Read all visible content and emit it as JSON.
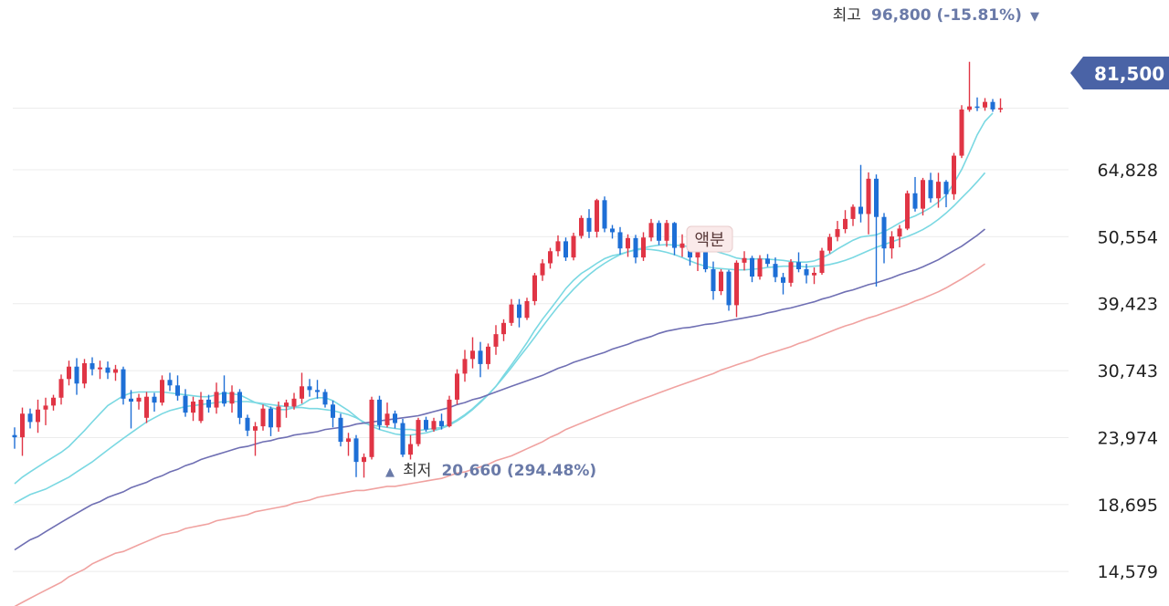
{
  "chart_data": {
    "type": "candlestick",
    "scale": "log",
    "ylim": [
      13000,
      110000
    ],
    "y_ticks": [
      "14,579",
      "18,695",
      "23,974",
      "30,743",
      "39,423",
      "50,554",
      "64,828"
    ],
    "y_tick_values": [
      14579,
      18695,
      23974,
      30743,
      39423,
      50554,
      64828
    ],
    "current_price": {
      "label": "81,500",
      "value": 81500
    },
    "high_annotation": {
      "label": "최고",
      "value_text": "96,800 (-15.81%)",
      "marker": "▼",
      "value": 96800,
      "index": 124
    },
    "low_annotation": {
      "marker": "▲",
      "label": "최저",
      "value_text": "20,660 (294.48%)",
      "value": 20660,
      "index": 45
    },
    "event_label": {
      "text": "액분",
      "index": 80
    },
    "candles": [
      [
        24200,
        24900,
        23000,
        24000
      ],
      [
        24000,
        26800,
        22400,
        26200
      ],
      [
        26200,
        26700,
        24800,
        25400
      ],
      [
        25400,
        27600,
        24400,
        26600
      ],
      [
        26600,
        27800,
        25100,
        27000
      ],
      [
        27000,
        28100,
        26500,
        27800
      ],
      [
        27800,
        30300,
        27100,
        29800
      ],
      [
        29800,
        31900,
        29100,
        31200
      ],
      [
        31200,
        32200,
        28100,
        29300
      ],
      [
        29300,
        32100,
        28800,
        31600
      ],
      [
        31600,
        32300,
        30200,
        30900
      ],
      [
        30900,
        31900,
        29800,
        31100
      ],
      [
        31100,
        31800,
        29800,
        30500
      ],
      [
        30500,
        31400,
        29600,
        30900
      ],
      [
        30900,
        31200,
        27100,
        27700
      ],
      [
        27700,
        28600,
        24800,
        27400
      ],
      [
        27400,
        28200,
        26600,
        27800
      ],
      [
        25800,
        28400,
        25300,
        27900
      ],
      [
        27900,
        28300,
        26400,
        27300
      ],
      [
        27300,
        30200,
        27000,
        29700
      ],
      [
        29700,
        30500,
        28500,
        29100
      ],
      [
        29100,
        30200,
        27500,
        28000
      ],
      [
        28000,
        28700,
        25900,
        26300
      ],
      [
        26300,
        27900,
        25500,
        27400
      ],
      [
        25500,
        28400,
        25300,
        27600
      ],
      [
        27600,
        28100,
        26300,
        26800
      ],
      [
        26800,
        29400,
        26200,
        28400
      ],
      [
        28400,
        30200,
        26900,
        27200
      ],
      [
        27200,
        29100,
        26300,
        28400
      ],
      [
        28400,
        28700,
        25200,
        25800
      ],
      [
        25800,
        26100,
        24100,
        24600
      ],
      [
        24600,
        25400,
        22400,
        25000
      ],
      [
        25000,
        27100,
        24600,
        26700
      ],
      [
        26700,
        26900,
        24100,
        24900
      ],
      [
        24900,
        27400,
        24500,
        26900
      ],
      [
        26900,
        27600,
        25800,
        27300
      ],
      [
        26900,
        28300,
        26600,
        27700
      ],
      [
        27700,
        30500,
        27200,
        29000
      ],
      [
        29000,
        29800,
        27900,
        28600
      ],
      [
        28600,
        29700,
        27700,
        28400
      ],
      [
        28400,
        28700,
        26800,
        27100
      ],
      [
        27100,
        27500,
        24900,
        25800
      ],
      [
        25800,
        26200,
        23200,
        23600
      ],
      [
        23600,
        24400,
        22400,
        23900
      ],
      [
        23900,
        24200,
        20700,
        21900
      ],
      [
        21900,
        22600,
        20660,
        22300
      ],
      [
        22300,
        27900,
        22100,
        27600
      ],
      [
        27600,
        28000,
        24700,
        25100
      ],
      [
        25100,
        27300,
        24900,
        26200
      ],
      [
        26200,
        26500,
        24800,
        25300
      ],
      [
        25300,
        25700,
        22300,
        22500
      ],
      [
        22500,
        24200,
        22100,
        23400
      ],
      [
        23400,
        25800,
        23200,
        25600
      ],
      [
        25600,
        25900,
        24500,
        24700
      ],
      [
        24700,
        25800,
        24500,
        25500
      ],
      [
        25500,
        26200,
        24700,
        25000
      ],
      [
        25000,
        28000,
        24900,
        27600
      ],
      [
        27600,
        30900,
        27100,
        30400
      ],
      [
        30400,
        33200,
        29500,
        32100
      ],
      [
        32100,
        34800,
        31000,
        33100
      ],
      [
        33100,
        34200,
        30000,
        31500
      ],
      [
        31500,
        34000,
        30900,
        33600
      ],
      [
        33600,
        36400,
        32600,
        35200
      ],
      [
        35200,
        37200,
        34300,
        36700
      ],
      [
        36700,
        40100,
        36300,
        39300
      ],
      [
        39300,
        40100,
        36100,
        37400
      ],
      [
        37400,
        40300,
        37100,
        39800
      ],
      [
        39800,
        44200,
        39200,
        43800
      ],
      [
        43800,
        46500,
        42900,
        45800
      ],
      [
        45800,
        48500,
        44900,
        47900
      ],
      [
        47900,
        50800,
        47000,
        49700
      ],
      [
        49700,
        50400,
        46200,
        46800
      ],
      [
        46800,
        51300,
        46300,
        50700
      ],
      [
        50700,
        54700,
        50200,
        54200
      ],
      [
        54200,
        56000,
        50300,
        51500
      ],
      [
        51500,
        58200,
        50400,
        57900
      ],
      [
        57900,
        58700,
        51400,
        52100
      ],
      [
        52100,
        52800,
        50200,
        51400
      ],
      [
        51400,
        52400,
        47300,
        48400
      ],
      [
        48400,
        51000,
        46900,
        50300
      ],
      [
        50300,
        50900,
        45800,
        46800
      ],
      [
        46800,
        51400,
        46200,
        50400
      ],
      [
        50400,
        54000,
        49700,
        53200
      ],
      [
        53200,
        53700,
        49000,
        49800
      ],
      [
        49800,
        53800,
        48700,
        53200
      ],
      [
        53200,
        53400,
        47200,
        48500
      ],
      [
        48500,
        51000,
        46900,
        49300
      ],
      [
        49300,
        49800,
        45400,
        46800
      ],
      [
        46800,
        48800,
        44500,
        47900
      ],
      [
        47900,
        48300,
        44300,
        44800
      ],
      [
        44800,
        46100,
        40000,
        41300
      ],
      [
        41300,
        44800,
        40700,
        44400
      ],
      [
        44400,
        44700,
        38400,
        39200
      ],
      [
        39200,
        46300,
        37500,
        45900
      ],
      [
        45900,
        47900,
        44600,
        46700
      ],
      [
        46700,
        47100,
        42700,
        43600
      ],
      [
        43600,
        47200,
        43100,
        46600
      ],
      [
        46600,
        47400,
        45200,
        45700
      ],
      [
        45700,
        46800,
        42700,
        43500
      ],
      [
        43500,
        44200,
        40800,
        42600
      ],
      [
        42600,
        46500,
        42000,
        46000
      ],
      [
        46000,
        47700,
        44300,
        44800
      ],
      [
        44800,
        45700,
        42500,
        43800
      ],
      [
        43800,
        45100,
        42400,
        44200
      ],
      [
        44200,
        48500,
        43900,
        48000
      ],
      [
        48000,
        51100,
        47500,
        50500
      ],
      [
        50500,
        53600,
        49700,
        52000
      ],
      [
        52000,
        55800,
        51200,
        54000
      ],
      [
        54000,
        57000,
        52600,
        56500
      ],
      [
        56500,
        66000,
        53300,
        55000
      ],
      [
        55000,
        64200,
        51000,
        62700
      ],
      [
        62700,
        63700,
        42000,
        54400
      ],
      [
        54400,
        55200,
        45800,
        48400
      ],
      [
        48400,
        51600,
        46600,
        50600
      ],
      [
        50600,
        52800,
        48600,
        52100
      ],
      [
        52100,
        60000,
        51800,
        59400
      ],
      [
        59400,
        63100,
        55500,
        56100
      ],
      [
        56100,
        62900,
        54700,
        62400
      ],
      [
        62400,
        64100,
        57400,
        58300
      ],
      [
        58300,
        64100,
        56300,
        62000
      ],
      [
        62000,
        62400,
        56400,
        59200
      ],
      [
        59200,
        69000,
        58000,
        68300
      ],
      [
        68300,
        82400,
        67700,
        81100
      ],
      [
        81000,
        96800,
        80400,
        82000
      ],
      [
        82000,
        84800,
        80600,
        81700
      ],
      [
        81700,
        84600,
        80700,
        83400
      ],
      [
        83400,
        84300,
        80400,
        81100
      ],
      [
        81100,
        84500,
        80200,
        81500
      ]
    ],
    "ma_series": [
      {
        "color": "#7ad8e2",
        "values": [
          20200,
          20700,
          21100,
          21500,
          21900,
          22300,
          22700,
          23200,
          23900,
          24600,
          25400,
          26200,
          27000,
          27500,
          28000,
          28300,
          28400,
          28400,
          28400,
          28400,
          28300,
          28200,
          28100,
          28000,
          27900,
          27900,
          28100,
          28300,
          28200,
          28100,
          27700,
          27300,
          27100,
          26800,
          26600,
          26600,
          26800,
          27100,
          27600,
          27800,
          27800,
          27500,
          27000,
          26500,
          25900,
          25300,
          25100,
          25000,
          24900,
          24800,
          24700,
          24700,
          24600,
          24700,
          24800,
          24900,
          25200,
          25600,
          26100,
          26700,
          27400,
          28100,
          29000,
          30200,
          31400,
          32700,
          34100,
          35700,
          37200,
          38600,
          40100,
          41700,
          43000,
          44100,
          44900,
          45800,
          46600,
          47100,
          47400,
          47800,
          48200,
          48500,
          48800,
          49000,
          49100,
          49000,
          48900,
          48700,
          48500,
          48300,
          48000,
          47600,
          47200,
          46700,
          46500,
          46500,
          46600,
          46500,
          46400,
          46300,
          46100,
          46000,
          46000,
          46200,
          46700,
          47400,
          48300,
          49100,
          49900,
          50500,
          50700,
          50900,
          51500,
          52300,
          53200,
          54000,
          54600,
          55400,
          56300,
          57500,
          59000,
          61700,
          64900,
          69100,
          73800,
          77600,
          80000
        ]
      },
      {
        "color": "#7ad8e2",
        "values": [
          18800,
          19100,
          19400,
          19600,
          19800,
          20100,
          20400,
          20700,
          21100,
          21500,
          21900,
          22400,
          22900,
          23400,
          23900,
          24400,
          24900,
          25400,
          25800,
          26200,
          26500,
          26700,
          26900,
          27000,
          27100,
          27200,
          27300,
          27400,
          27400,
          27400,
          27400,
          27300,
          27200,
          27100,
          27000,
          26900,
          26800,
          26800,
          26700,
          26700,
          26600,
          26500,
          26300,
          26100,
          25800,
          25400,
          25000,
          24700,
          24500,
          24300,
          24200,
          24200,
          24300,
          24400,
          24600,
          24800,
          25100,
          25500,
          26000,
          26600,
          27300,
          28100,
          29000,
          30000,
          31100,
          32300,
          33500,
          34800,
          36200,
          37600,
          39000,
          40300,
          41600,
          42800,
          43900,
          44900,
          45800,
          46600,
          47300,
          47800,
          48100,
          48300,
          48200,
          48000,
          47700,
          47300,
          46800,
          46200,
          45700,
          45300,
          45000,
          44900,
          44800,
          44700,
          44700,
          44800,
          44900,
          45100,
          45200,
          45300,
          45300,
          45300,
          45200,
          45300,
          45400,
          45600,
          45900,
          46300,
          46800,
          47400,
          48000,
          48600,
          49100,
          49600,
          50100,
          50600,
          51200,
          51900,
          52800,
          53900,
          55200,
          56700,
          58400,
          60100,
          62000,
          64100
        ]
      },
      {
        "color": "#6f6fb3",
        "values": [
          15800,
          16100,
          16400,
          16600,
          16900,
          17200,
          17500,
          17800,
          18100,
          18400,
          18700,
          18900,
          19200,
          19400,
          19600,
          19900,
          20100,
          20300,
          20600,
          20800,
          21100,
          21300,
          21600,
          21800,
          22100,
          22300,
          22500,
          22700,
          22900,
          23100,
          23200,
          23400,
          23600,
          23700,
          23900,
          24000,
          24200,
          24300,
          24400,
          24500,
          24700,
          24800,
          24900,
          25000,
          25200,
          25300,
          25400,
          25500,
          25600,
          25700,
          25800,
          25900,
          26000,
          26200,
          26400,
          26600,
          26800,
          27100,
          27300,
          27600,
          27800,
          28100,
          28400,
          28700,
          29000,
          29300,
          29600,
          29900,
          30200,
          30600,
          31000,
          31300,
          31700,
          32000,
          32300,
          32600,
          32900,
          33300,
          33600,
          33900,
          34300,
          34600,
          34900,
          35300,
          35600,
          35800,
          36000,
          36100,
          36300,
          36500,
          36600,
          36800,
          37000,
          37200,
          37400,
          37600,
          37800,
          38100,
          38300,
          38600,
          38800,
          39100,
          39400,
          39700,
          40100,
          40400,
          40800,
          41200,
          41500,
          41900,
          42300,
          42600,
          43000,
          43400,
          43900,
          44300,
          44700,
          45200,
          45800,
          46400,
          47200,
          48000,
          48800,
          49800,
          50800,
          52000
        ]
      },
      {
        "color": "#f0a2a0",
        "values": [
          12800,
          13000,
          13200,
          13400,
          13600,
          13800,
          14000,
          14300,
          14500,
          14700,
          15000,
          15200,
          15400,
          15600,
          15700,
          15900,
          16100,
          16300,
          16500,
          16700,
          16800,
          16900,
          17100,
          17200,
          17300,
          17400,
          17600,
          17700,
          17800,
          17900,
          18000,
          18200,
          18300,
          18400,
          18500,
          18600,
          18800,
          18900,
          19000,
          19200,
          19300,
          19400,
          19500,
          19600,
          19700,
          19700,
          19800,
          19900,
          20000,
          20000,
          20100,
          20200,
          20300,
          20400,
          20500,
          20600,
          20800,
          21000,
          21100,
          21300,
          21500,
          21700,
          22000,
          22200,
          22400,
          22700,
          23000,
          23300,
          23600,
          24000,
          24300,
          24700,
          25000,
          25300,
          25600,
          25900,
          26200,
          26500,
          26800,
          27100,
          27400,
          27700,
          28000,
          28300,
          28600,
          28900,
          29200,
          29500,
          29800,
          30100,
          30400,
          30800,
          31100,
          31400,
          31700,
          32000,
          32400,
          32700,
          33000,
          33300,
          33600,
          34000,
          34300,
          34700,
          35100,
          35500,
          35900,
          36300,
          36600,
          37000,
          37400,
          37700,
          38100,
          38500,
          38900,
          39300,
          39800,
          40200,
          40700,
          41200,
          41800,
          42500,
          43200,
          44000,
          44800,
          45700
        ]
      }
    ],
    "colors": {
      "up": "#e03545",
      "down": "#1e6fd6",
      "grid": "#ececec",
      "annotation": "#6a7aa8",
      "current_badge": "#4a63a6"
    }
  }
}
